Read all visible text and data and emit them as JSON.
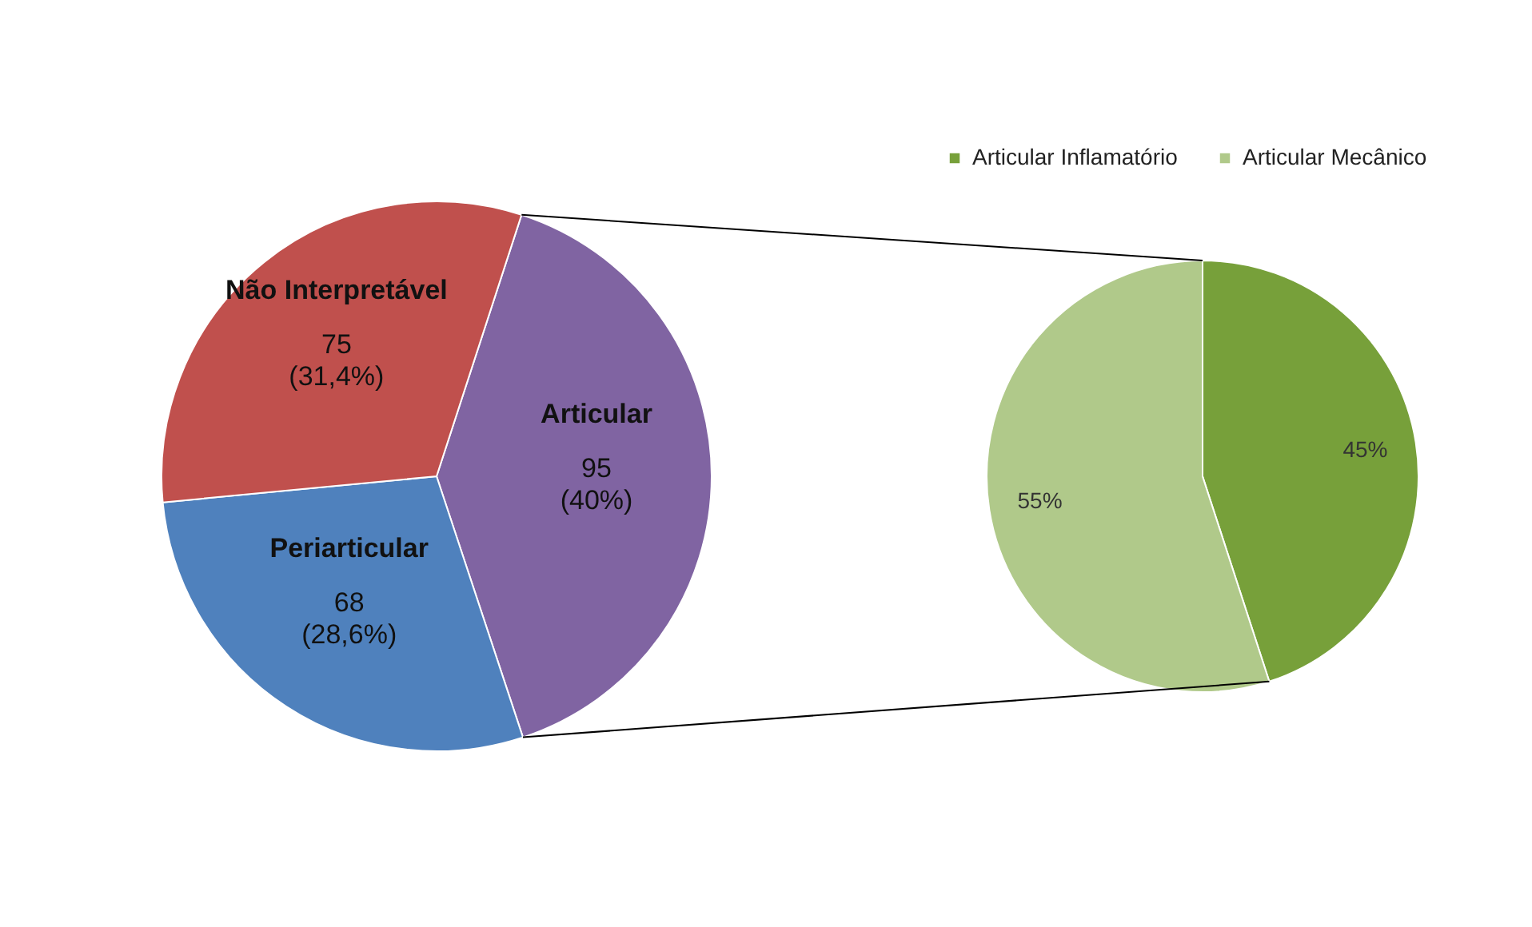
{
  "chart_data": [
    {
      "type": "pie",
      "categories": [
        "Articular",
        "Periarticular",
        "Não Interpretável"
      ],
      "values": [
        95,
        68,
        75
      ],
      "colors": [
        "#8064a2",
        "#4f81bd",
        "#c0504d"
      ],
      "value_labels": [
        "95\n\n(40%)",
        "68\n\n(28,6%)",
        "75\n\n(31,4%)"
      ]
    },
    {
      "type": "pie",
      "categories": [
        "Articular Inflamatório",
        "Articular Mecânico"
      ],
      "values": [
        45,
        55
      ],
      "colors": [
        "#77a03a",
        "#b0c98a"
      ],
      "value_labels": [
        "45%",
        "55%"
      ],
      "legend": "top right"
    }
  ]
}
